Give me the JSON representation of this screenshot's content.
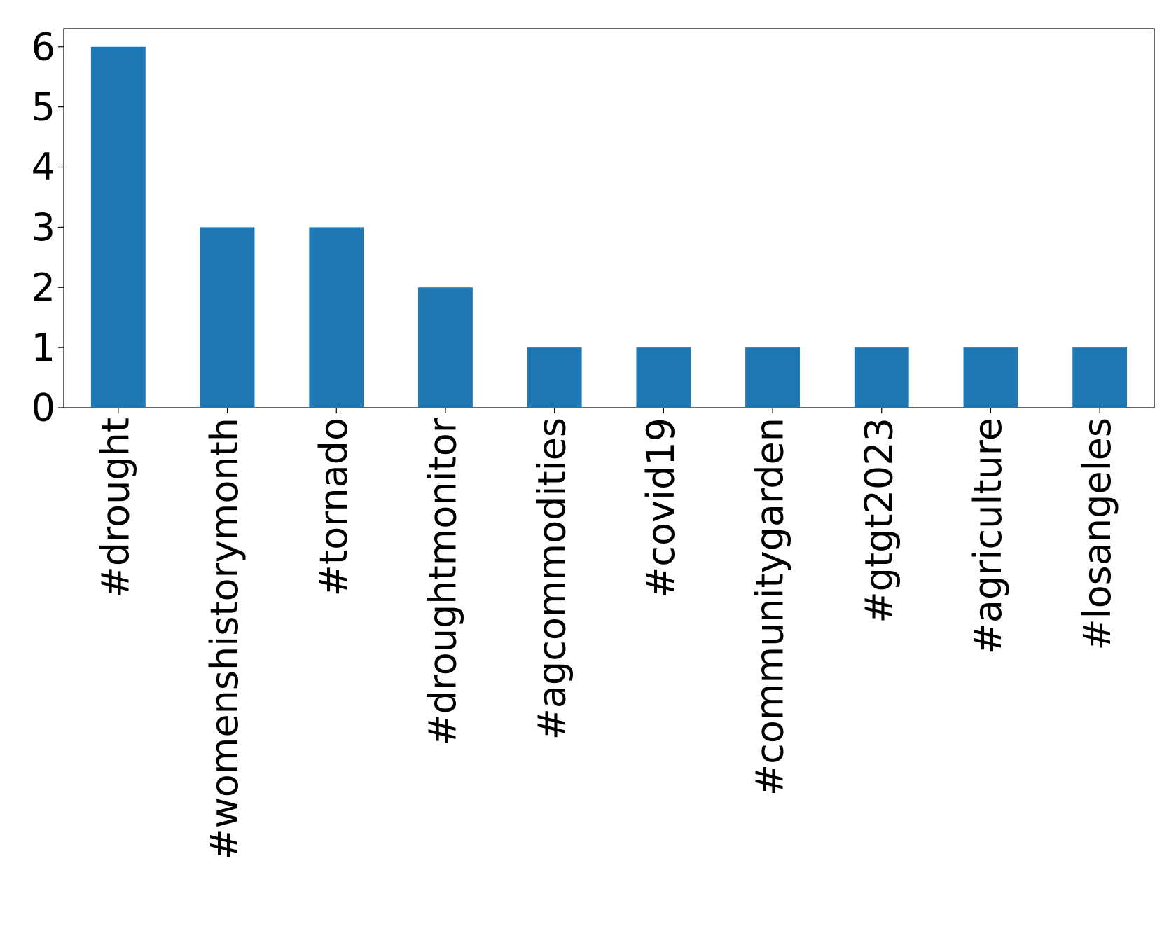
{
  "chart_data": {
    "type": "bar",
    "categories": [
      "#drought",
      "#womenshistorymonth",
      "#tornado",
      "#droughtmonitor",
      "#agcommodities",
      "#covid19",
      "#communitygarden",
      "#gtgt2023",
      "#agriculture",
      "#losangeles"
    ],
    "values": [
      6,
      3,
      3,
      2,
      1,
      1,
      1,
      1,
      1,
      1
    ],
    "color": "#1f77b4",
    "ylim": [
      0,
      6.3
    ],
    "yticks": [
      0,
      1,
      2,
      3,
      4,
      5,
      6
    ],
    "grid": false
  }
}
